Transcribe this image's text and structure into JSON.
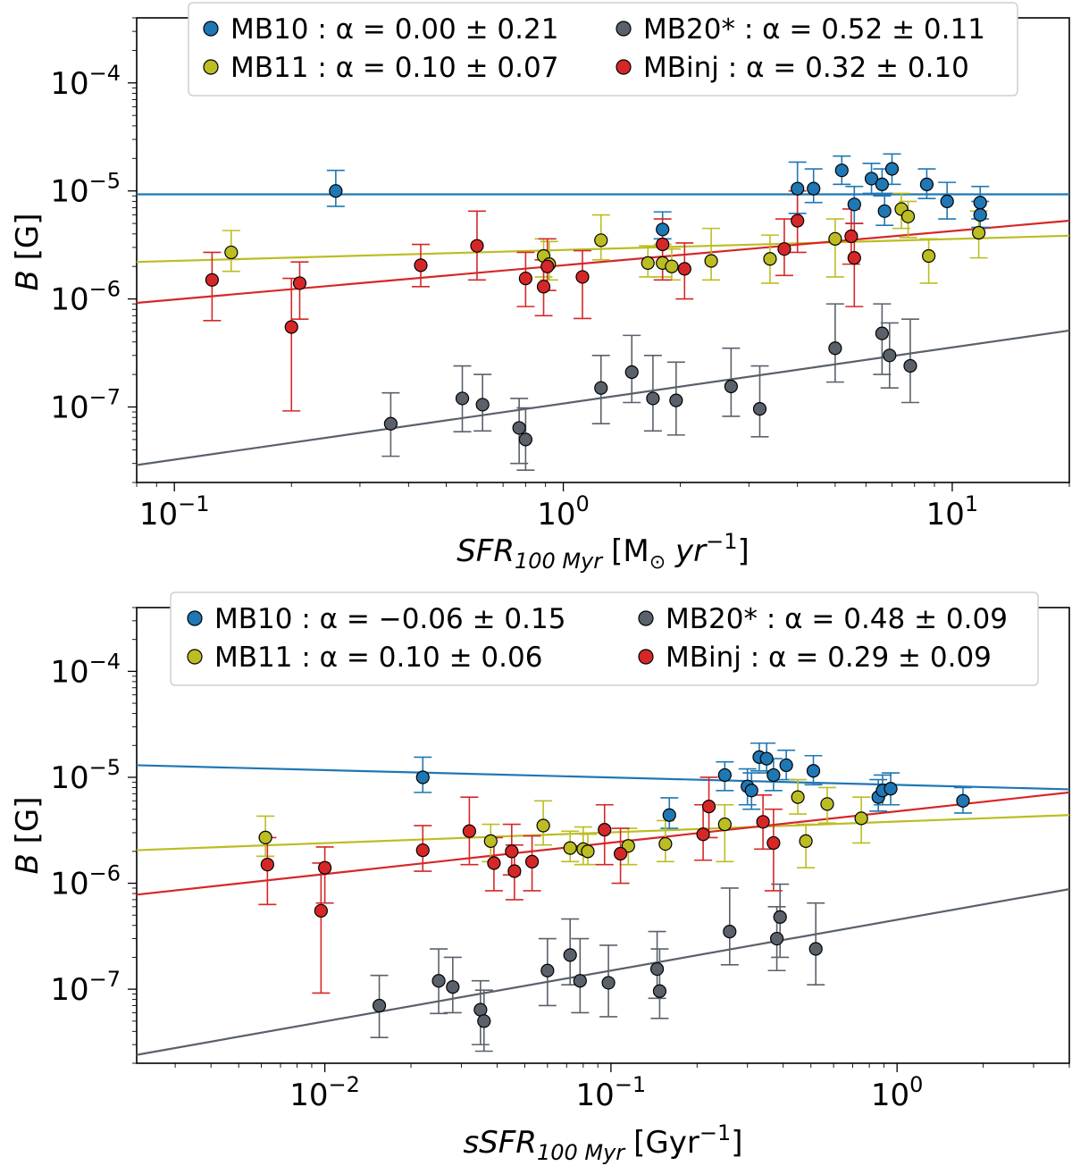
{
  "chart_data": [
    {
      "type": "scatter",
      "id": "top",
      "xscale": "log",
      "yscale": "log",
      "xlim": [
        0.08,
        20
      ],
      "ylim": [
        2e-08,
        0.0004
      ],
      "xlabel": "SFR_{100 Myr} [M_⊙ yr^{-1}]",
      "xlabel_main": "SFR",
      "xlabel_sub": "100 Myr",
      "xlabel_unit": "[M",
      "xlabel_sun": "⊙",
      "xlabel_unit2": " yr",
      "xlabel_sup": "−1",
      "xlabel_close": "]",
      "ylabel": "B [G]",
      "ylabel_var": "B",
      "ylabel_unit": " [G]",
      "xticks": [
        {
          "v": 0.1,
          "base": "10",
          "exp": "−1"
        },
        {
          "v": 1,
          "base": "10",
          "exp": "0"
        },
        {
          "v": 10,
          "base": "10",
          "exp": "1"
        }
      ],
      "yticks": [
        {
          "v": 1e-07,
          "base": "10",
          "exp": "−7"
        },
        {
          "v": 1e-06,
          "base": "10",
          "exp": "−6"
        },
        {
          "v": 1e-05,
          "base": "10",
          "exp": "−5"
        },
        {
          "v": 0.0001,
          "base": "10",
          "exp": "−4"
        }
      ],
      "legend": {
        "position": "top-center",
        "entries": [
          {
            "name": "MB10",
            "label": "MB10 : α = 0.00 ± 0.21",
            "color": "#1f77b4"
          },
          {
            "name": "MB11",
            "label": "MB11 : α = 0.10 ± 0.07",
            "color": "#bcbd22"
          },
          {
            "name": "MB20*",
            "label": "MB20* : α = 0.52 ± 0.11",
            "color": "#5a616b"
          },
          {
            "name": "MBinj",
            "label": "MBinj : α = 0.32 ± 0.10",
            "color": "#d62728"
          }
        ]
      },
      "series": [
        {
          "name": "MB10",
          "color": "#1f77b4",
          "fit": [
            [
              0.08,
              9.3e-06
            ],
            [
              20,
              9.3e-06
            ]
          ],
          "points": [
            [
              0.26,
              1e-05,
              7.2e-06,
              1.55e-05
            ],
            [
              1.8,
              4.4e-06,
              3.6e-06,
              6.4e-06
            ],
            [
              4.0,
              1.05e-05,
              6.2e-06,
              1.85e-05
            ],
            [
              4.4,
              1.05e-05,
              7.8e-06,
              1.6e-05
            ],
            [
              5.2,
              1.55e-05,
              1.15e-05,
              2.1e-05
            ],
            [
              5.6,
              7.5e-06,
              5e-06,
              1.1e-05
            ],
            [
              6.2,
              1.3e-05,
              9.5e-06,
              1.8e-05
            ],
            [
              6.6,
              1.15e-05,
              9e-06,
              1.6e-05
            ],
            [
              6.7,
              6.5e-06,
              4.8e-06,
              9.5e-06
            ],
            [
              7.0,
              1.6e-05,
              1.15e-05,
              2.2e-05
            ],
            [
              8.6,
              1.15e-05,
              8.5e-06,
              1.6e-05
            ],
            [
              9.7,
              8e-06,
              5.5e-06,
              1.2e-05
            ],
            [
              11.8,
              7.8e-06,
              5.5e-06,
              1.1e-05
            ],
            [
              11.8,
              6e-06,
              4.6e-06,
              8e-06
            ]
          ]
        },
        {
          "name": "MB11",
          "color": "#bcbd22",
          "fit": [
            [
              0.08,
              2.2e-06
            ],
            [
              20,
              3.85e-06
            ]
          ],
          "points": [
            [
              0.14,
              2.7e-06,
              1.8e-06,
              4.3e-06
            ],
            [
              0.89,
              2.5e-06,
              1.6e-06,
              3.6e-06
            ],
            [
              0.92,
              2.1e-06,
              1.5e-06,
              3.4e-06
            ],
            [
              1.25,
              3.5e-06,
              2.3e-06,
              6e-06
            ],
            [
              1.65,
              2.15e-06,
              1.6e-06,
              3.1e-06
            ],
            [
              1.8,
              2.15e-06,
              1.6e-06,
              3.2e-06
            ],
            [
              1.9,
              2e-06,
              1.5e-06,
              2.9e-06
            ],
            [
              2.4,
              2.25e-06,
              1.5e-06,
              4.5e-06
            ],
            [
              3.4,
              2.35e-06,
              1.4e-06,
              3.9e-06
            ],
            [
              5.0,
              3.6e-06,
              1.6e-06,
              5.5e-06
            ],
            [
              7.4,
              6.8e-06,
              4.5e-06,
              9.5e-06
            ],
            [
              7.7,
              5.8e-06,
              3.7e-06,
              8e-06
            ],
            [
              8.7,
              2.5e-06,
              1.4e-06,
              3.6e-06
            ],
            [
              11.7,
              4.1e-06,
              2.4e-06,
              6.5e-06
            ]
          ]
        },
        {
          "name": "MBinj",
          "color": "#d62728",
          "fit": [
            [
              0.08,
              9.2e-07
            ],
            [
              20,
              5.3e-06
            ]
          ],
          "points": [
            [
              0.125,
              1.5e-06,
              6.3e-07,
              2.7e-06
            ],
            [
              0.2,
              5.5e-07,
              9.2e-08,
              1.55e-06
            ],
            [
              0.21,
              1.4e-06,
              6.5e-07,
              2.2e-06
            ],
            [
              0.43,
              2.05e-06,
              1.3e-06,
              3.2e-06
            ],
            [
              0.6,
              3.1e-06,
              1.5e-06,
              6.5e-06
            ],
            [
              0.8,
              1.55e-06,
              8.5e-07,
              2.7e-06
            ],
            [
              0.89,
              1.3e-06,
              7e-07,
              2.3e-06
            ],
            [
              0.91,
              2e-06,
              1.2e-06,
              3.6e-06
            ],
            [
              1.12,
              1.6e-06,
              6.6e-07,
              2.8e-06
            ],
            [
              1.8,
              3.2e-06,
              1.5e-06,
              5.5e-06
            ],
            [
              2.05,
              1.9e-06,
              1e-06,
              3.3e-06
            ],
            [
              3.7,
              2.9e-06,
              1.65e-06,
              5.5e-06
            ],
            [
              4.0,
              5.3e-06,
              2.7e-06,
              1e-05
            ],
            [
              5.5,
              3.8e-06,
              2.1e-06,
              6.8e-06
            ],
            [
              5.6,
              2.4e-06,
              8.5e-07,
              5e-06
            ]
          ]
        },
        {
          "name": "MB20*",
          "color": "#5a616b",
          "fit": [
            [
              0.08,
              2.9e-08
            ],
            [
              20,
              5.1e-07
            ]
          ],
          "points": [
            [
              0.36,
              7e-08,
              3.5e-08,
              1.35e-07
            ],
            [
              0.55,
              1.2e-07,
              5.9e-08,
              2.4e-07
            ],
            [
              0.62,
              1.05e-07,
              6e-08,
              2e-07
            ],
            [
              0.77,
              6.4e-08,
              3e-08,
              1.2e-07
            ],
            [
              0.8,
              5e-08,
              2.6e-08,
              9.8e-08
            ],
            [
              1.25,
              1.5e-07,
              7e-08,
              3e-07
            ],
            [
              1.5,
              2.1e-07,
              1.1e-07,
              4.6e-07
            ],
            [
              1.7,
              1.2e-07,
              6e-08,
              3e-07
            ],
            [
              1.95,
              1.15e-07,
              5.5e-08,
              2.6e-07
            ],
            [
              2.7,
              1.55e-07,
              8.2e-08,
              3.5e-07
            ],
            [
              3.2,
              9.6e-08,
              5.3e-08,
              2.4e-07
            ],
            [
              5.0,
              3.5e-07,
              1.7e-07,
              9e-07
            ],
            [
              6.6,
              4.8e-07,
              2e-07,
              9e-07
            ],
            [
              6.9,
              3e-07,
              1.5e-07,
              6e-07
            ],
            [
              7.8,
              2.4e-07,
              1.1e-07,
              6.5e-07
            ]
          ]
        }
      ]
    },
    {
      "type": "scatter",
      "id": "bottom",
      "xscale": "log",
      "yscale": "log",
      "xlim": [
        0.0022,
        4.0
      ],
      "ylim": [
        2e-08,
        0.0004
      ],
      "xlabel": "sSFR_{100 Myr} [Gyr^{-1}]",
      "xlabel_main": "sSFR",
      "xlabel_sub": "100 Myr",
      "xlabel_unit": "[Gyr",
      "xlabel_sup": "−1",
      "xlabel_close": "]",
      "ylabel": "B [G]",
      "ylabel_var": "B",
      "ylabel_unit": " [G]",
      "xticks": [
        {
          "v": 0.01,
          "base": "10",
          "exp": "−2"
        },
        {
          "v": 0.1,
          "base": "10",
          "exp": "−1"
        },
        {
          "v": 1,
          "base": "10",
          "exp": "0"
        }
      ],
      "yticks": [
        {
          "v": 1e-07,
          "base": "10",
          "exp": "−7"
        },
        {
          "v": 1e-06,
          "base": "10",
          "exp": "−6"
        },
        {
          "v": 1e-05,
          "base": "10",
          "exp": "−5"
        },
        {
          "v": 0.0001,
          "base": "10",
          "exp": "−4"
        }
      ],
      "legend": {
        "position": "top-center",
        "entries": [
          {
            "name": "MB10",
            "label": "MB10 : α = −0.06 ± 0.15",
            "color": "#1f77b4"
          },
          {
            "name": "MB11",
            "label": "MB11 : α = 0.10 ± 0.06",
            "color": "#bcbd22"
          },
          {
            "name": "MB20*",
            "label": "MB20* : α = 0.48 ± 0.09",
            "color": "#5a616b"
          },
          {
            "name": "MBinj",
            "label": "MBinj : α = 0.29 ± 0.09",
            "color": "#d62728"
          }
        ]
      },
      "series": [
        {
          "name": "MB10",
          "color": "#1f77b4",
          "fit": [
            [
              0.0022,
              1.3e-05
            ],
            [
              4.0,
              7.7e-06
            ]
          ],
          "points": [
            [
              0.022,
              1e-05,
              7.2e-06,
              1.55e-05
            ],
            [
              0.16,
              4.4e-06,
              3.3e-06,
              6.4e-06
            ],
            [
              0.25,
              1.05e-05,
              7.5e-06,
              1.4e-05
            ],
            [
              0.3,
              8.2e-06,
              5.5e-06,
              1.2e-05
            ],
            [
              0.31,
              7.5e-06,
              5e-06,
              1.1e-05
            ],
            [
              0.33,
              1.55e-05,
              1.15e-05,
              2.1e-05
            ],
            [
              0.35,
              1.5e-05,
              1.1e-05,
              2.1e-05
            ],
            [
              0.37,
              1.05e-05,
              7.5e-06,
              1.5e-05
            ],
            [
              0.41,
              1.3e-05,
              9.5e-06,
              1.8e-05
            ],
            [
              0.51,
              1.15e-05,
              8.5e-06,
              1.6e-05
            ],
            [
              0.86,
              6.5e-06,
              4.8e-06,
              9.5e-06
            ],
            [
              0.89,
              7.5e-06,
              5.5e-06,
              1.05e-05
            ],
            [
              0.95,
              7.8e-06,
              5.5e-06,
              1.1e-05
            ],
            [
              1.7,
              6e-06,
              4.6e-06,
              8e-06
            ]
          ]
        },
        {
          "name": "MB11",
          "color": "#bcbd22",
          "fit": [
            [
              0.0022,
              2.05e-06
            ],
            [
              4.0,
              4.4e-06
            ]
          ],
          "points": [
            [
              0.0062,
              2.7e-06,
              1.8e-06,
              4.3e-06
            ],
            [
              0.038,
              2.5e-06,
              1.6e-06,
              3.6e-06
            ],
            [
              0.058,
              3.5e-06,
              2.3e-06,
              6e-06
            ],
            [
              0.072,
              2.15e-06,
              1.6e-06,
              3.1e-06
            ],
            [
              0.08,
              2.1e-06,
              1.5e-06,
              3.4e-06
            ],
            [
              0.083,
              2e-06,
              1.5e-06,
              2.9e-06
            ],
            [
              0.115,
              2.25e-06,
              1.5e-06,
              3.3e-06
            ],
            [
              0.155,
              2.35e-06,
              1.6e-06,
              3.9e-06
            ],
            [
              0.25,
              3.6e-06,
              1.6e-06,
              5.5e-06
            ],
            [
              0.45,
              6.5e-06,
              4.5e-06,
              9.5e-06
            ],
            [
              0.48,
              2.5e-06,
              1.4e-06,
              3.6e-06
            ],
            [
              0.57,
              5.6e-06,
              3.7e-06,
              8e-06
            ],
            [
              0.75,
              4.1e-06,
              2.4e-06,
              6.5e-06
            ]
          ]
        },
        {
          "name": "MBinj",
          "color": "#d62728",
          "fit": [
            [
              0.0022,
              7.8e-07
            ],
            [
              4.0,
              7.2e-06
            ]
          ],
          "points": [
            [
              0.0063,
              1.5e-06,
              6.3e-07,
              2.7e-06
            ],
            [
              0.0097,
              5.5e-07,
              9.2e-08,
              1.55e-06
            ],
            [
              0.01,
              1.4e-06,
              6.5e-07,
              2.2e-06
            ],
            [
              0.022,
              2.05e-06,
              1.3e-06,
              3.5e-06
            ],
            [
              0.032,
              3.1e-06,
              1.5e-06,
              6.5e-06
            ],
            [
              0.039,
              1.55e-06,
              8.5e-07,
              2.7e-06
            ],
            [
              0.045,
              2e-06,
              1.2e-06,
              3.6e-06
            ],
            [
              0.046,
              1.3e-06,
              7e-07,
              2.3e-06
            ],
            [
              0.053,
              1.6e-06,
              8.5e-07,
              2.8e-06
            ],
            [
              0.095,
              3.2e-06,
              1.5e-06,
              5.5e-06
            ],
            [
              0.108,
              1.9e-06,
              1e-06,
              3.3e-06
            ],
            [
              0.21,
              2.9e-06,
              1.65e-06,
              5.5e-06
            ],
            [
              0.22,
              5.3e-06,
              2.7e-06,
              1e-05
            ],
            [
              0.34,
              3.8e-06,
              2.1e-06,
              6.8e-06
            ],
            [
              0.37,
              2.4e-06,
              8.5e-07,
              5e-06
            ]
          ]
        },
        {
          "name": "MB20*",
          "color": "#5a616b",
          "fit": [
            [
              0.0022,
              2.4e-08
            ],
            [
              4.0,
              8.8e-07
            ]
          ],
          "points": [
            [
              0.0155,
              7e-08,
              3.5e-08,
              1.35e-07
            ],
            [
              0.025,
              1.2e-07,
              5.9e-08,
              2.4e-07
            ],
            [
              0.028,
              1.05e-07,
              6e-08,
              2e-07
            ],
            [
              0.035,
              6.4e-08,
              3e-08,
              1.2e-07
            ],
            [
              0.036,
              5e-08,
              2.6e-08,
              9.8e-08
            ],
            [
              0.06,
              1.5e-07,
              7e-08,
              3e-07
            ],
            [
              0.072,
              2.1e-07,
              1.1e-07,
              4.6e-07
            ],
            [
              0.078,
              1.2e-07,
              6e-08,
              3e-07
            ],
            [
              0.098,
              1.15e-07,
              5.5e-08,
              2.6e-07
            ],
            [
              0.145,
              1.55e-07,
              8.2e-08,
              3.5e-07
            ],
            [
              0.148,
              9.6e-08,
              5.3e-08,
              2.4e-07
            ],
            [
              0.26,
              3.5e-07,
              1.7e-07,
              9e-07
            ],
            [
              0.38,
              3e-07,
              1.5e-07,
              6e-07
            ],
            [
              0.39,
              4.8e-07,
              2e-07,
              9.8e-07
            ],
            [
              0.52,
              2.4e-07,
              1.1e-07,
              6.5e-07
            ]
          ]
        }
      ]
    }
  ]
}
